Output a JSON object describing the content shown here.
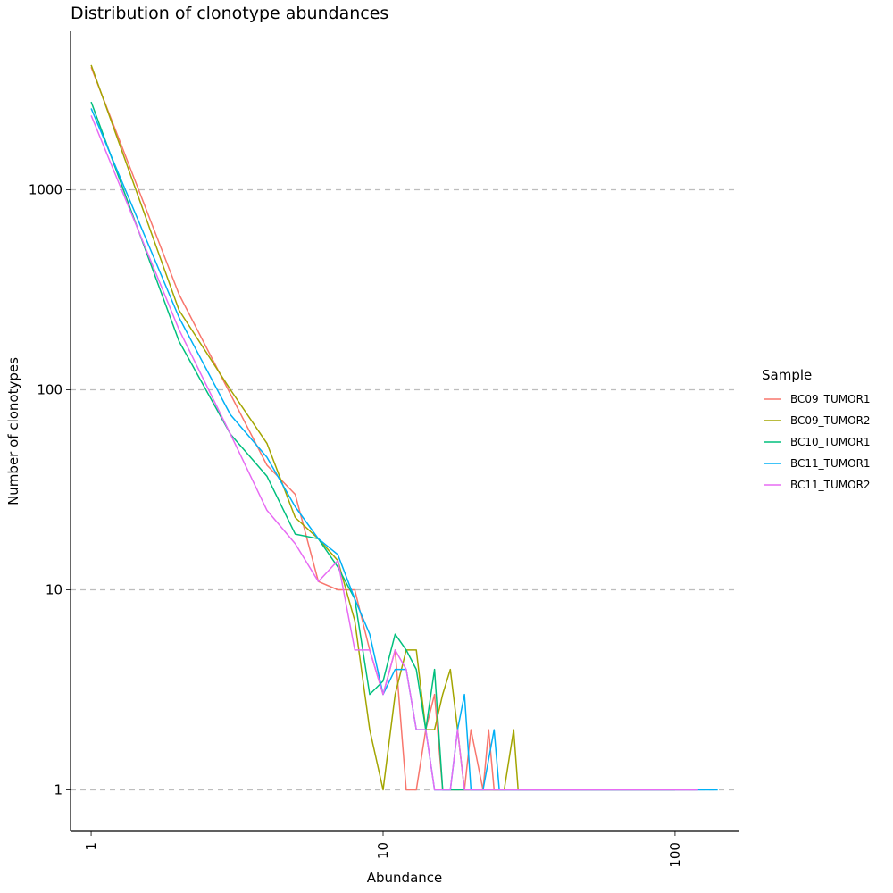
{
  "chart_data": {
    "type": "line",
    "title": "Distribution of clonotype abundances",
    "xlabel": "Abundance",
    "ylabel": "Number of clonotypes",
    "x_scale": "log10",
    "y_scale": "log10",
    "xlim": [
      0.85,
      165
    ],
    "ylim": [
      0.62,
      6200
    ],
    "x_ticks": [
      {
        "value": 1,
        "label": "1"
      },
      {
        "value": 10,
        "label": "10"
      },
      {
        "value": 100,
        "label": "100"
      }
    ],
    "y_ticks": [
      {
        "value": 1,
        "label": "1"
      },
      {
        "value": 10,
        "label": "10"
      },
      {
        "value": 100,
        "label": "100"
      },
      {
        "value": 1000,
        "label": "1000"
      }
    ],
    "grid": "major-y dashed",
    "legend": {
      "title": "Sample",
      "position": "right"
    },
    "series": [
      {
        "name": "BC09_TUMOR1",
        "color": "#F8766D",
        "points": [
          [
            1,
            4100
          ],
          [
            2,
            300
          ],
          [
            3,
            95
          ],
          [
            4,
            42
          ],
          [
            5,
            30
          ],
          [
            6,
            11
          ],
          [
            7,
            10
          ],
          [
            8,
            10
          ],
          [
            9,
            5
          ],
          [
            10,
            3
          ],
          [
            11,
            5
          ],
          [
            12,
            1
          ],
          [
            13,
            1
          ],
          [
            14,
            2
          ],
          [
            15,
            3
          ],
          [
            16,
            1
          ],
          [
            17,
            1
          ],
          [
            18,
            1
          ],
          [
            19,
            1
          ],
          [
            20,
            2
          ],
          [
            22,
            1
          ],
          [
            23,
            2
          ],
          [
            24,
            1
          ],
          [
            26,
            1
          ],
          [
            28,
            1
          ],
          [
            30,
            1
          ],
          [
            40,
            1
          ],
          [
            60,
            1
          ],
          [
            100,
            1
          ],
          [
            120,
            1
          ]
        ]
      },
      {
        "name": "BC09_TUMOR2",
        "color": "#A3A500",
        "points": [
          [
            1,
            4200
          ],
          [
            2,
            250
          ],
          [
            3,
            100
          ],
          [
            4,
            54
          ],
          [
            5,
            23
          ],
          [
            6,
            18
          ],
          [
            7,
            14
          ],
          [
            8,
            7
          ],
          [
            9,
            2
          ],
          [
            10,
            1
          ],
          [
            11,
            3
          ],
          [
            12,
            5
          ],
          [
            13,
            5
          ],
          [
            14,
            2
          ],
          [
            15,
            2
          ],
          [
            16,
            3
          ],
          [
            17,
            4
          ],
          [
            18,
            2
          ],
          [
            19,
            1
          ],
          [
            20,
            1
          ],
          [
            22,
            1
          ],
          [
            24,
            1
          ],
          [
            26,
            1
          ],
          [
            28,
            2
          ],
          [
            29,
            1
          ],
          [
            40,
            1
          ],
          [
            60,
            1
          ],
          [
            100,
            1
          ]
        ]
      },
      {
        "name": "BC10_TUMOR1",
        "color": "#00BF7D",
        "points": [
          [
            1,
            2750
          ],
          [
            2,
            175
          ],
          [
            3,
            60
          ],
          [
            4,
            37
          ],
          [
            5,
            19
          ],
          [
            6,
            18
          ],
          [
            7,
            13
          ],
          [
            8,
            9
          ],
          [
            9,
            3
          ],
          [
            10,
            3.5
          ],
          [
            11,
            6
          ],
          [
            12,
            5
          ],
          [
            13,
            4
          ],
          [
            14,
            2
          ],
          [
            15,
            4
          ],
          [
            16,
            1
          ],
          [
            17,
            1
          ],
          [
            18,
            1
          ],
          [
            20,
            1
          ],
          [
            30,
            1
          ],
          [
            60,
            1
          ],
          [
            100,
            1
          ]
        ]
      },
      {
        "name": "BC11_TUMOR1",
        "color": "#00B0F6",
        "points": [
          [
            1,
            2550
          ],
          [
            2,
            230
          ],
          [
            3,
            75
          ],
          [
            4,
            46
          ],
          [
            5,
            26
          ],
          [
            6,
            18
          ],
          [
            7,
            15
          ],
          [
            8,
            9
          ],
          [
            9,
            6
          ],
          [
            10,
            3
          ],
          [
            11,
            4
          ],
          [
            12,
            4
          ],
          [
            13,
            2
          ],
          [
            14,
            2
          ],
          [
            15,
            1
          ],
          [
            16,
            1
          ],
          [
            17,
            1
          ],
          [
            18,
            2
          ],
          [
            19,
            3
          ],
          [
            20,
            1
          ],
          [
            22,
            1
          ],
          [
            24,
            2
          ],
          [
            25,
            1
          ],
          [
            30,
            1
          ],
          [
            60,
            1
          ],
          [
            100,
            1
          ],
          [
            130,
            1
          ],
          [
            140,
            1
          ]
        ]
      },
      {
        "name": "BC11_TUMOR2",
        "color": "#E76BF3",
        "points": [
          [
            1,
            2350
          ],
          [
            2,
            200
          ],
          [
            3,
            60
          ],
          [
            4,
            25
          ],
          [
            5,
            17
          ],
          [
            6,
            11
          ],
          [
            7,
            14
          ],
          [
            8,
            5
          ],
          [
            9,
            5
          ],
          [
            10,
            3
          ],
          [
            11,
            5
          ],
          [
            12,
            4
          ],
          [
            13,
            2
          ],
          [
            14,
            2
          ],
          [
            15,
            1
          ],
          [
            16,
            1
          ],
          [
            17,
            1
          ],
          [
            18,
            2
          ],
          [
            19,
            1
          ],
          [
            20,
            1
          ],
          [
            30,
            1
          ],
          [
            60,
            1
          ],
          [
            100,
            1
          ],
          [
            120,
            1
          ]
        ]
      }
    ]
  }
}
